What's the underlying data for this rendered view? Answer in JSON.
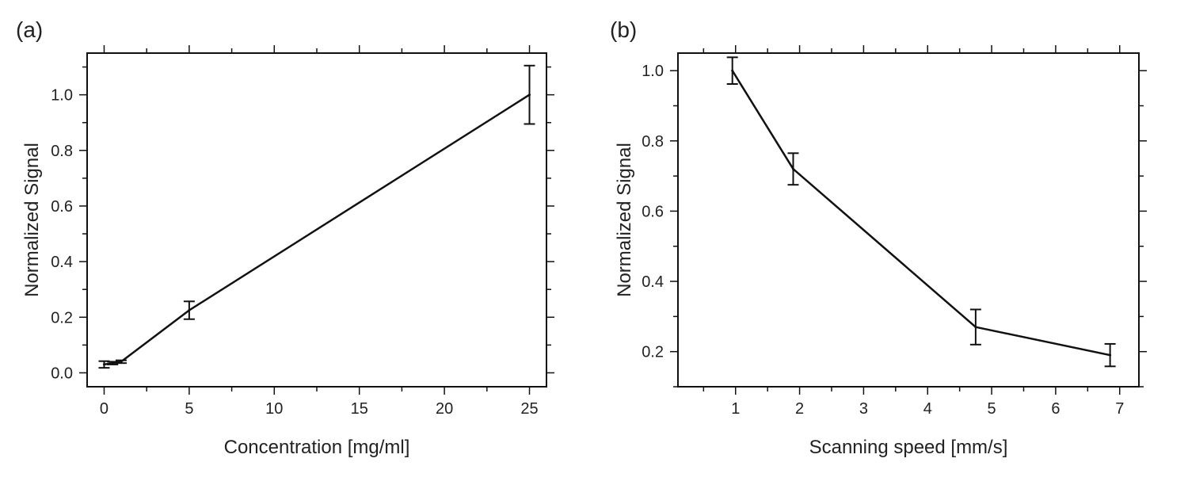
{
  "chart_data": [
    {
      "type": "line",
      "panel_label": "(a)",
      "xlabel": "Concentration [mg/ml]",
      "ylabel": "Normalized Signal",
      "xlim": [
        -1,
        26
      ],
      "ylim": [
        -0.05,
        1.15
      ],
      "xticks": [
        0,
        5,
        10,
        15,
        20,
        25
      ],
      "yticks": [
        0.0,
        0.2,
        0.4,
        0.6,
        0.8,
        1.0
      ],
      "xtick_labels": [
        "0",
        "5",
        "10",
        "15",
        "20",
        "25"
      ],
      "ytick_labels": [
        "0.0",
        "0.2",
        "0.4",
        "0.6",
        "0.8",
        "1.0"
      ],
      "x_minor_step": 2.5,
      "y_minor_step": 0.1,
      "series": [
        {
          "name": "signal",
          "x": [
            0,
            0.5,
            1,
            5,
            25
          ],
          "y": [
            0.03,
            0.035,
            0.04,
            0.225,
            1.0
          ],
          "err": [
            0.012,
            0.005,
            0.005,
            0.032,
            0.105
          ]
        }
      ]
    },
    {
      "type": "line",
      "panel_label": "(b)",
      "xlabel": "Scanning speed [mm/s]",
      "ylabel": "Normalized Signal",
      "xlim": [
        0.1,
        7.3
      ],
      "ylim": [
        0.1,
        1.05
      ],
      "xticks": [
        1,
        2,
        3,
        4,
        5,
        6,
        7
      ],
      "yticks": [
        0.2,
        0.4,
        0.6,
        0.8,
        1.0
      ],
      "xtick_labels": [
        "1",
        "2",
        "3",
        "4",
        "5",
        "6",
        "7"
      ],
      "ytick_labels": [
        "0.2",
        "0.4",
        "0.6",
        "0.8",
        "1.0"
      ],
      "x_minor_step": 0.5,
      "y_minor_step": 0.1,
      "series": [
        {
          "name": "signal",
          "x": [
            0.95,
            1.9,
            4.75,
            6.85
          ],
          "y": [
            1.0,
            0.72,
            0.27,
            0.19
          ],
          "err": [
            0.038,
            0.045,
            0.05,
            0.032
          ]
        }
      ]
    }
  ]
}
